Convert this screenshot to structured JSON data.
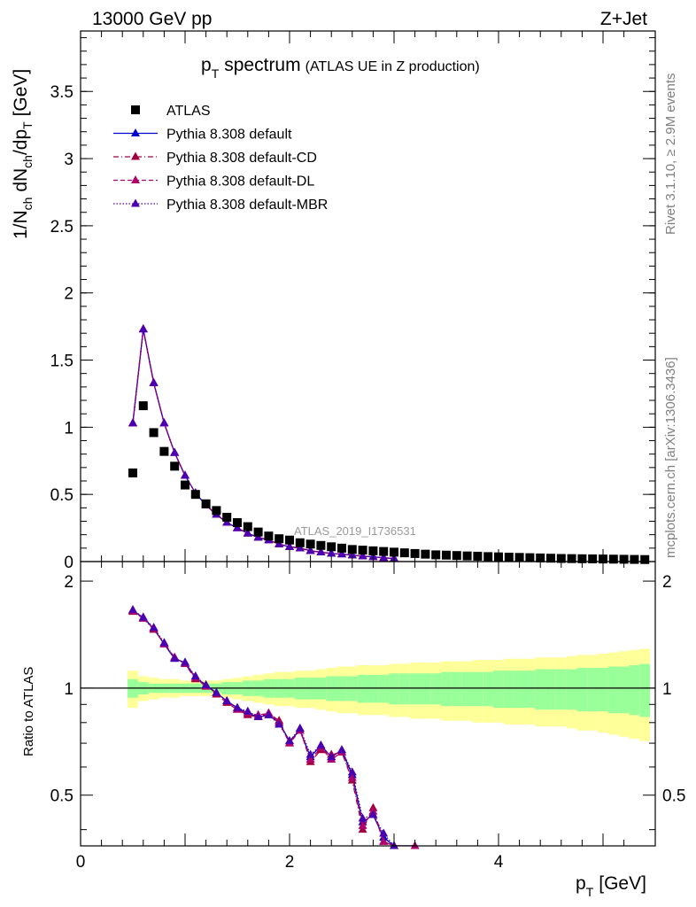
{
  "header": {
    "left": "13000 GeV pp",
    "right": "Z+Jet"
  },
  "side_labels": {
    "rivet": "Rivet 3.1.10, ≥ 2.9M events",
    "mcplots": "mcplots.cern.ch [arXiv:1306.3436]"
  },
  "chart_data": [
    {
      "type": "scatter",
      "title_main": "p",
      "title_sub": "T",
      "title_word": "spectrum",
      "title_extra": "(ATLAS UE in Z production)",
      "ylabel": "1/N_ch dN_ch/dp_T [GeV]",
      "watermark": "ATLAS_2019_I1736531",
      "xlim": [
        0,
        5.5
      ],
      "ylim": [
        0,
        3.95
      ],
      "yticks": [
        "0",
        "0.5",
        "1",
        "1.5",
        "2",
        "2.5",
        "3",
        "3.5"
      ],
      "x": [
        0.5,
        0.6,
        0.7,
        0.8,
        0.9,
        1.0,
        1.1,
        1.2,
        1.3,
        1.4,
        1.5,
        1.6,
        1.7,
        1.8,
        1.9,
        2.0,
        2.1,
        2.2,
        2.3,
        2.4,
        2.5,
        2.6,
        2.7,
        2.8,
        2.9,
        3.0,
        3.1,
        3.2,
        3.3,
        3.4,
        3.5,
        3.6,
        3.7,
        3.8,
        3.9,
        4.0,
        4.1,
        4.2,
        4.3,
        4.4,
        4.5,
        4.6,
        4.7,
        4.8,
        4.9,
        5.0,
        5.1,
        5.2,
        5.3,
        5.4
      ],
      "legend": [
        {
          "label": "ATLAS",
          "color": "#000000",
          "marker": "square",
          "line": "none"
        },
        {
          "label": "Pythia 8.308 default",
          "color": "#0000cc",
          "marker": "triangle",
          "line": "solid"
        },
        {
          "label": "Pythia 8.308 default-CD",
          "color": "#a00040",
          "marker": "triangle",
          "line": "dashdot"
        },
        {
          "label": "Pythia 8.308 default-DL",
          "color": "#b0006a",
          "marker": "triangle",
          "line": "dashed"
        },
        {
          "label": "Pythia 8.308 default-MBR",
          "color": "#4a00b0",
          "marker": "triangle",
          "line": "dotted"
        }
      ],
      "series": [
        {
          "name": "ATLAS",
          "values": [
            0.66,
            1.16,
            0.96,
            0.82,
            0.71,
            0.57,
            0.5,
            0.43,
            0.38,
            0.33,
            0.29,
            0.26,
            0.22,
            0.19,
            0.17,
            0.16,
            0.14,
            0.13,
            0.12,
            0.11,
            0.1,
            0.09,
            0.085,
            0.08,
            0.075,
            0.07,
            0.065,
            0.06,
            0.055,
            0.05,
            0.048,
            0.045,
            0.042,
            0.04,
            0.037,
            0.035,
            0.033,
            0.031,
            0.029,
            0.027,
            0.025,
            0.023,
            0.022,
            0.021,
            0.02,
            0.019,
            0.018,
            0.017,
            0.016,
            0.015
          ]
        },
        {
          "name": "Pythia 8.308 default",
          "values": [
            1.03,
            1.73,
            1.33,
            1.03,
            0.81,
            0.64,
            0.51,
            0.42,
            0.35,
            0.29,
            0.25,
            0.21,
            0.18,
            0.16,
            0.13,
            0.11,
            0.1,
            0.08,
            0.07,
            0.06,
            0.055,
            0.048,
            0.04,
            0.035,
            0.028,
            0.023
          ]
        },
        {
          "name": "Pythia 8.308 default-CD",
          "values": [
            1.03,
            1.73,
            1.33,
            1.03,
            0.81,
            0.64,
            0.51,
            0.42,
            0.35,
            0.29,
            0.25,
            0.21,
            0.18,
            0.16,
            0.13,
            0.11,
            0.1,
            0.08,
            0.07,
            0.06,
            0.055,
            0.048,
            0.04,
            0.035,
            0.028,
            0.023
          ]
        },
        {
          "name": "Pythia 8.308 default-DL",
          "values": [
            1.03,
            1.73,
            1.33,
            1.03,
            0.81,
            0.64,
            0.51,
            0.42,
            0.35,
            0.29,
            0.25,
            0.21,
            0.18,
            0.16,
            0.13,
            0.11,
            0.1,
            0.08,
            0.07,
            0.06,
            0.055,
            0.048,
            0.04,
            0.035,
            0.028,
            0.023
          ]
        },
        {
          "name": "Pythia 8.308 default-MBR",
          "values": [
            1.03,
            1.73,
            1.33,
            1.03,
            0.81,
            0.64,
            0.51,
            0.42,
            0.35,
            0.29,
            0.25,
            0.21,
            0.18,
            0.16,
            0.13,
            0.11,
            0.1,
            0.08,
            0.07,
            0.06,
            0.055,
            0.048,
            0.04,
            0.035,
            0.028,
            0.023
          ]
        }
      ]
    },
    {
      "type": "line",
      "ylabel": "Ratio to ATLAS",
      "xlabel_main": "p",
      "xlabel_sub": "T",
      "xlabel_unit": "[GeV]",
      "xlim": [
        0,
        5.5
      ],
      "ylim": [
        0.36,
        2.27
      ],
      "yticks": [
        "0.5",
        "1",
        "2"
      ],
      "xticks": [
        "0",
        "2",
        "4"
      ],
      "x": [
        0.5,
        0.6,
        0.7,
        0.8,
        0.9,
        1.0,
        1.1,
        1.2,
        1.3,
        1.4,
        1.5,
        1.6,
        1.7,
        1.8,
        1.9,
        2.0,
        2.1,
        2.2,
        2.3,
        2.4,
        2.5,
        2.6,
        2.7,
        2.8,
        2.9,
        3.0,
        3.1,
        3.2
      ],
      "reference_line": 1,
      "band_x": [
        0.5,
        0.6,
        0.7,
        0.8,
        0.9,
        1.0,
        1.1,
        1.2,
        1.3,
        1.4,
        1.5,
        1.6,
        1.7,
        1.8,
        1.9,
        2.0,
        2.1,
        2.2,
        2.3,
        2.4,
        2.5,
        2.6,
        2.7,
        2.8,
        2.9,
        3.0,
        3.1,
        3.2,
        3.3,
        3.4,
        3.5,
        3.6,
        3.7,
        3.8,
        3.9,
        4.0,
        4.1,
        4.2,
        4.3,
        4.4,
        4.5,
        4.6,
        4.7,
        4.8,
        4.9,
        5.0,
        5.1,
        5.2,
        5.3,
        5.4
      ],
      "band_stat_sys_half": [
        0.12,
        0.08,
        0.07,
        0.06,
        0.06,
        0.05,
        0.05,
        0.05,
        0.05,
        0.06,
        0.07,
        0.08,
        0.09,
        0.1,
        0.11,
        0.11,
        0.12,
        0.12,
        0.13,
        0.14,
        0.15,
        0.15,
        0.16,
        0.16,
        0.16,
        0.17,
        0.17,
        0.18,
        0.18,
        0.18,
        0.19,
        0.19,
        0.19,
        0.2,
        0.2,
        0.2,
        0.21,
        0.21,
        0.21,
        0.22,
        0.22,
        0.22,
        0.23,
        0.24,
        0.24,
        0.25,
        0.26,
        0.27,
        0.28,
        0.29
      ],
      "band_stat_half": [
        0.06,
        0.04,
        0.03,
        0.03,
        0.03,
        0.03,
        0.03,
        0.03,
        0.03,
        0.04,
        0.04,
        0.05,
        0.05,
        0.06,
        0.06,
        0.06,
        0.07,
        0.07,
        0.07,
        0.08,
        0.08,
        0.08,
        0.09,
        0.09,
        0.09,
        0.1,
        0.1,
        0.1,
        0.1,
        0.1,
        0.11,
        0.11,
        0.11,
        0.11,
        0.11,
        0.12,
        0.12,
        0.12,
        0.12,
        0.13,
        0.13,
        0.13,
        0.13,
        0.14,
        0.14,
        0.14,
        0.15,
        0.15,
        0.16,
        0.17
      ],
      "series": [
        {
          "name": "Pythia 8.308 default",
          "values": [
            1.65,
            1.58,
            1.47,
            1.33,
            1.21,
            1.18,
            1.07,
            1.02,
            0.97,
            0.92,
            0.88,
            0.85,
            0.83,
            0.84,
            0.8,
            0.71,
            0.76,
            0.64,
            0.69,
            0.64,
            0.67,
            0.57,
            0.42,
            0.44,
            0.38,
            0.36,
            0.34,
            0.33
          ]
        },
        {
          "name": "Pythia 8.308 default-CD",
          "values": [
            1.64,
            1.57,
            1.46,
            1.34,
            1.22,
            1.17,
            1.06,
            1.02,
            0.96,
            0.91,
            0.87,
            0.84,
            0.83,
            0.85,
            0.81,
            0.7,
            0.77,
            0.62,
            0.67,
            0.65,
            0.66,
            0.55,
            0.4,
            0.46,
            0.37,
            0.35,
            0.34,
            0.35
          ]
        },
        {
          "name": "Pythia 8.308 default-DL",
          "values": [
            1.65,
            1.57,
            1.47,
            1.33,
            1.22,
            1.17,
            1.07,
            1.01,
            0.97,
            0.92,
            0.87,
            0.85,
            0.84,
            0.85,
            0.8,
            0.7,
            0.76,
            0.63,
            0.68,
            0.63,
            0.66,
            0.56,
            0.41,
            0.45,
            0.37,
            0.35,
            0.34,
            0.36
          ]
        },
        {
          "name": "Pythia 8.308 default-MBR",
          "values": [
            1.66,
            1.58,
            1.48,
            1.34,
            1.21,
            1.18,
            1.08,
            1.02,
            0.97,
            0.92,
            0.88,
            0.86,
            0.83,
            0.84,
            0.79,
            0.71,
            0.77,
            0.65,
            0.69,
            0.64,
            0.67,
            0.58,
            0.43,
            0.44,
            0.39,
            0.36,
            0.35,
            0.34
          ]
        }
      ]
    }
  ]
}
